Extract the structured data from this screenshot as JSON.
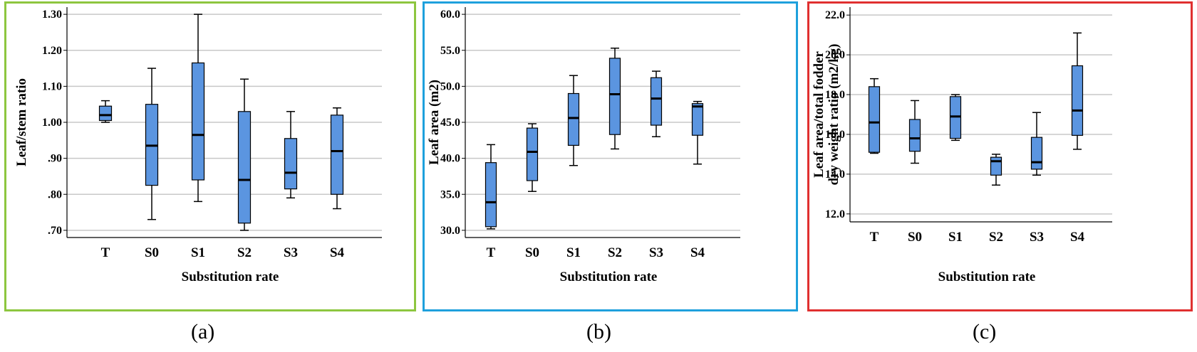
{
  "chart_data": [
    {
      "id": "a",
      "type": "box",
      "caption": "(a)",
      "frame_color": "#8dc63f",
      "box_color": "#5b95e0",
      "categories": [
        "T",
        "S0",
        "S1",
        "S2",
        "S3",
        "S4"
      ],
      "ylabel": "Leaf/stem ratio",
      "xlabel": "Substitution rate",
      "ylim": [
        0.68,
        1.32
      ],
      "yticks": [
        0.7,
        0.8,
        0.9,
        1.0,
        1.1,
        1.2,
        1.3
      ],
      "ytick_labels": [
        ".70",
        ".80",
        ".90",
        "1.00",
        "1.10",
        "1.20",
        "1.30"
      ],
      "boxes": [
        {
          "min": 1.0,
          "q1": 1.005,
          "median": 1.02,
          "q3": 1.045,
          "max": 1.06
        },
        {
          "min": 0.73,
          "q1": 0.825,
          "median": 0.935,
          "q3": 1.05,
          "max": 1.15
        },
        {
          "min": 0.78,
          "q1": 0.84,
          "median": 0.965,
          "q3": 1.165,
          "max": 1.3
        },
        {
          "min": 0.7,
          "q1": 0.72,
          "median": 0.84,
          "q3": 1.03,
          "max": 1.12
        },
        {
          "min": 0.79,
          "q1": 0.815,
          "median": 0.86,
          "q3": 0.955,
          "max": 1.03
        },
        {
          "min": 0.76,
          "q1": 0.8,
          "median": 0.92,
          "q3": 1.02,
          "max": 1.04
        }
      ]
    },
    {
      "id": "b",
      "type": "box",
      "caption": "(b)",
      "frame_color": "#1ea0dc",
      "box_color": "#5b95e0",
      "categories": [
        "T",
        "S0",
        "S1",
        "S2",
        "S3",
        "S4"
      ],
      "ylabel": "Leaf area  (m2)",
      "xlabel": "Substitution rate",
      "ylim": [
        29.0,
        61.0
      ],
      "yticks": [
        30.0,
        35.0,
        40.0,
        45.0,
        50.0,
        55.0,
        60.0
      ],
      "ytick_labels": [
        "30.0",
        "35.0",
        "40.0",
        "45.0",
        "50.0",
        "55.0",
        "60.0"
      ],
      "boxes": [
        {
          "min": 30.2,
          "q1": 30.5,
          "median": 33.9,
          "q3": 39.4,
          "max": 41.9
        },
        {
          "min": 35.4,
          "q1": 36.9,
          "median": 40.9,
          "q3": 44.2,
          "max": 44.8
        },
        {
          "min": 39.0,
          "q1": 41.8,
          "median": 45.6,
          "q3": 49.0,
          "max": 51.5
        },
        {
          "min": 41.3,
          "q1": 43.3,
          "median": 48.9,
          "q3": 53.9,
          "max": 55.3
        },
        {
          "min": 43.0,
          "q1": 44.6,
          "median": 48.3,
          "q3": 51.2,
          "max": 52.1
        },
        {
          "min": 39.2,
          "q1": 43.2,
          "median": 47.2,
          "q3": 47.6,
          "max": 47.9
        }
      ]
    },
    {
      "id": "c",
      "type": "box",
      "caption": "(c)",
      "frame_color": "#e03030",
      "box_color": "#5b95e0",
      "categories": [
        "T",
        "S0",
        "S1",
        "S2",
        "S3",
        "S4"
      ],
      "ylabel_lines": [
        "Leaf area/total fodder",
        "dry weight ratio (m2/kg)"
      ],
      "xlabel": "Substitution rate",
      "ylim": [
        11.6,
        22.4
      ],
      "yticks": [
        12.0,
        14.0,
        16.0,
        18.0,
        20.0,
        22.0
      ],
      "ytick_labels": [
        "12.0",
        "14.0",
        "16.0",
        "18.0",
        "20.0",
        "22.0"
      ],
      "boxes": [
        {
          "min": 15.05,
          "q1": 15.1,
          "median": 16.6,
          "q3": 18.4,
          "max": 18.8
        },
        {
          "min": 14.55,
          "q1": 15.15,
          "median": 15.8,
          "q3": 16.75,
          "max": 17.7
        },
        {
          "min": 15.7,
          "q1": 15.8,
          "median": 16.9,
          "q3": 17.9,
          "max": 18.0
        },
        {
          "min": 13.45,
          "q1": 13.95,
          "median": 14.65,
          "q3": 14.85,
          "max": 15.0
        },
        {
          "min": 13.95,
          "q1": 14.25,
          "median": 14.6,
          "q3": 15.85,
          "max": 17.1
        },
        {
          "min": 15.25,
          "q1": 15.95,
          "median": 17.2,
          "q3": 19.45,
          "max": 21.1
        }
      ]
    }
  ]
}
